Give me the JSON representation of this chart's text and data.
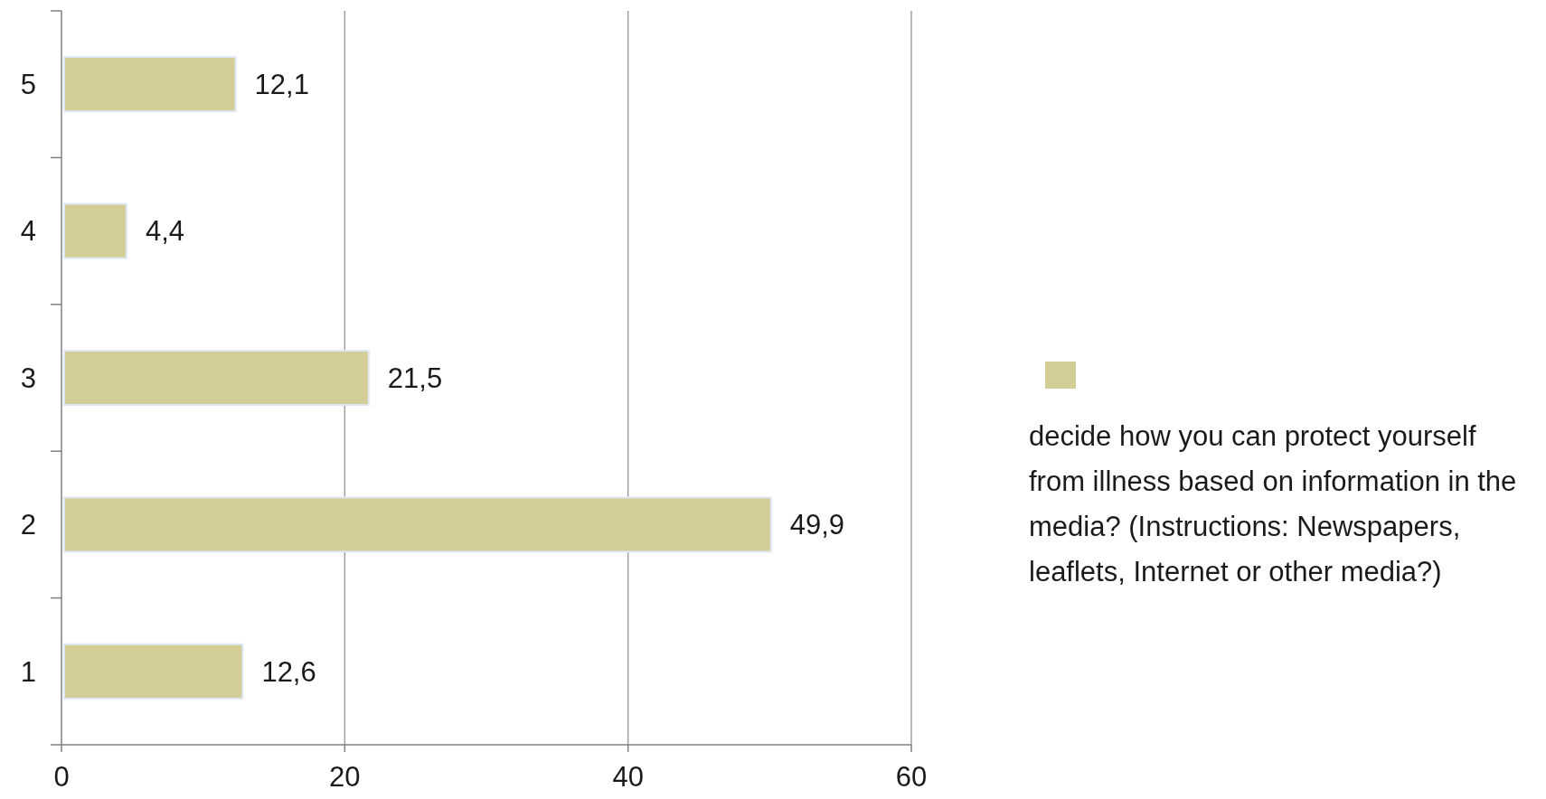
{
  "chart_data": {
    "type": "bar",
    "orientation": "horizontal",
    "categories": [
      "5",
      "4",
      "3",
      "2",
      "1"
    ],
    "series": [
      {
        "name": "decide how you can protect yourself from illness based on information in the media? (Instructions: Newspapers, leaflets, Internet or other media?)",
        "color": "#d3cd98",
        "values": [
          12.1,
          4.4,
          21.5,
          49.9,
          12.6
        ],
        "value_labels": [
          "12,1",
          "4,4",
          "21,5",
          "49,9",
          "12,6"
        ]
      }
    ],
    "xlim": [
      0,
      60
    ],
    "xticks": [
      0,
      20,
      40,
      60
    ],
    "grid": "x",
    "legend": "right"
  }
}
